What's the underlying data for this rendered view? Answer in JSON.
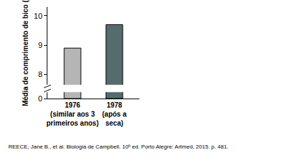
{
  "chart_data": {
    "type": "bar",
    "categories": [
      "1976\n(similar aos 3\nprimeiros anos)",
      "1978\n(após a\nseca)"
    ],
    "values": [
      8.9,
      9.7
    ],
    "colors": [
      "#b5b5b5",
      "#566b6b"
    ],
    "ylim": [
      0,
      10.3
    ],
    "yticks": [
      0,
      8,
      9,
      10
    ],
    "ylabel": "Média de comprimento de bico (mm)",
    "annotations": [
      "REECE, Jane B., et al. Biologia de Campbell. 10º ed. Porto Alegre: Artmed, 2015. p. 481."
    ],
    "grid": false
  }
}
